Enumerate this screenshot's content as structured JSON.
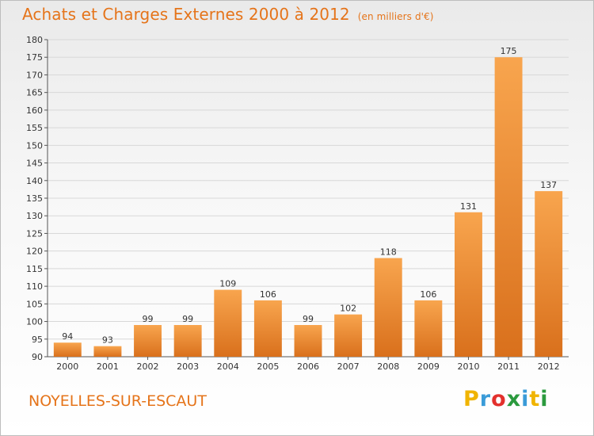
{
  "header": {
    "title": "Achats et Charges Externes 2000 à 2012",
    "subtitle": "(en milliers d'€)"
  },
  "footer": {
    "location": "NOYELLES-SUR-ESCAUT",
    "brand_letters": [
      "P",
      "r",
      "o",
      "x",
      "i",
      "t",
      "i"
    ],
    "brand_colors": [
      "#f0b400",
      "#3a9bd8",
      "#e3312d",
      "#2b9a3e",
      "#3a9bd8",
      "#f0b400",
      "#2b9a3e"
    ]
  },
  "colors": {
    "bar_light": "#f8a54e",
    "bar_dark": "#d9701c",
    "title": "#e5741a",
    "grid": "#d8d8d8"
  },
  "chart_data": {
    "type": "bar",
    "title": "Achats et Charges Externes 2000 à 2012",
    "subtitle": "(en milliers d'€)",
    "categories": [
      "2000",
      "2001",
      "2002",
      "2003",
      "2004",
      "2005",
      "2006",
      "2007",
      "2008",
      "2009",
      "2010",
      "2011",
      "2012"
    ],
    "values": [
      94,
      93,
      99,
      99,
      109,
      106,
      99,
      102,
      118,
      106,
      131,
      175,
      137
    ],
    "ylim": [
      90,
      180
    ],
    "yticks": [
      90,
      95,
      100,
      105,
      110,
      115,
      120,
      125,
      130,
      135,
      140,
      145,
      150,
      155,
      160,
      165,
      170,
      175,
      180
    ],
    "grid": true,
    "data_labels": true
  }
}
